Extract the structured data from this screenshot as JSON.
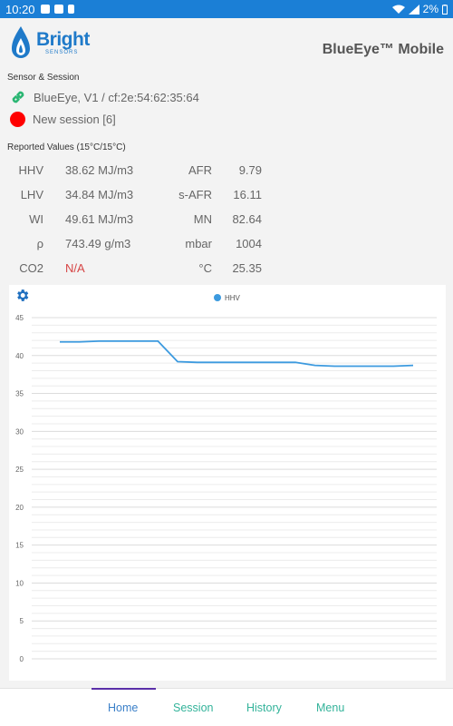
{
  "status_bar": {
    "time": "10:20",
    "battery": "2%"
  },
  "header": {
    "logo_name": "Bright",
    "logo_sub": "SENSORS",
    "title": "BlueEye™ Mobile"
  },
  "sensor_session": {
    "title": "Sensor & Session",
    "sensor": "BlueEye, V1 / cf:2e:54:62:35:64",
    "session": "New session [6]"
  },
  "reported_values": {
    "title": "Reported Values (15°C/15°C)",
    "rows": [
      {
        "l1": "HHV",
        "v1": "38.62 MJ/m3",
        "l2": "AFR",
        "v2": "9.79"
      },
      {
        "l1": "LHV",
        "v1": "34.84 MJ/m3",
        "l2": "s-AFR",
        "v2": "16.11"
      },
      {
        "l1": "WI",
        "v1": "49.61 MJ/m3",
        "l2": "MN",
        "v2": "82.64"
      },
      {
        "l1": "ρ",
        "v1": "743.49 g/m3",
        "l2": "mbar",
        "v2": "1004"
      },
      {
        "l1": "CO2",
        "v1": "N/A",
        "l2": "°C",
        "v2": "25.35"
      }
    ]
  },
  "chart_data": {
    "type": "line",
    "legend": "top-center",
    "grid": true,
    "series": [
      {
        "name": "HHV",
        "color": "#3c9adf",
        "values": [
          41.8,
          41.8,
          41.9,
          41.9,
          41.9,
          41.9,
          39.2,
          39.1,
          39.1,
          39.1,
          39.1,
          39.1,
          39.1,
          38.7,
          38.6,
          38.6,
          38.6,
          38.6,
          38.7
        ]
      }
    ],
    "ylim": [
      0,
      45
    ],
    "yticks": [
      0,
      5,
      10,
      15,
      20,
      25,
      30,
      35,
      40,
      45
    ]
  },
  "nav": {
    "items": [
      "Home",
      "Session",
      "History",
      "Menu"
    ],
    "active": "Home"
  }
}
